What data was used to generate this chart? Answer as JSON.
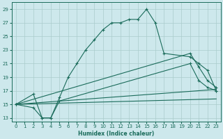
{
  "xlabel": "Humidex (Indice chaleur)",
  "xlim": [
    -0.5,
    23.5
  ],
  "ylim": [
    12.5,
    30
  ],
  "yticks": [
    13,
    15,
    17,
    19,
    21,
    23,
    25,
    27,
    29
  ],
  "xticks": [
    0,
    1,
    2,
    3,
    4,
    5,
    6,
    7,
    8,
    9,
    10,
    11,
    12,
    13,
    14,
    15,
    16,
    17,
    18,
    19,
    20,
    21,
    22,
    23
  ],
  "bg_color": "#cde8ec",
  "grid_color": "#aacccc",
  "line_color": "#1a6b5a",
  "series1_x": [
    0,
    2,
    3,
    4,
    5,
    6,
    7,
    8,
    9,
    10,
    11,
    12,
    13,
    14,
    15,
    16,
    17,
    20,
    21,
    22,
    23
  ],
  "series1_y": [
    15,
    16.5,
    13,
    13,
    16,
    19,
    21,
    23,
    24.5,
    26,
    27,
    27,
    27.5,
    27.5,
    29,
    27,
    22.5,
    22,
    21,
    20,
    17
  ],
  "series2_x": [
    0,
    2,
    3,
    4,
    5,
    20,
    21,
    22,
    23
  ],
  "series2_y": [
    15,
    14.5,
    13,
    13,
    15.5,
    21,
    18.5,
    17.5,
    17
  ],
  "series3_x": [
    0,
    20,
    21,
    22,
    23
  ],
  "series3_y": [
    15,
    22.5,
    20.5,
    18.5,
    17.5
  ],
  "line1_x": [
    0,
    23
  ],
  "line1_y": [
    15,
    17.2
  ],
  "line2_x": [
    0,
    23
  ],
  "line2_y": [
    15,
    15.8
  ]
}
